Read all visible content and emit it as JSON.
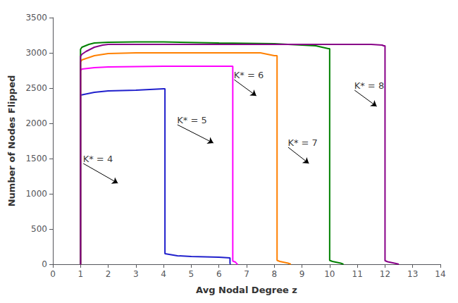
{
  "chart_data": {
    "type": "line",
    "xlabel": "Avg Nodal Degree z",
    "ylabel": "Number of Nodes Flipped",
    "xlim": [
      0,
      14
    ],
    "ylim": [
      0,
      3500
    ],
    "xticks": [
      0,
      1,
      2,
      3,
      4,
      5,
      6,
      7,
      8,
      9,
      10,
      11,
      12,
      13,
      14
    ],
    "yticks": [
      0,
      500,
      1000,
      1500,
      2000,
      2500,
      3000,
      3500
    ],
    "grid": false,
    "series": [
      {
        "color": "#2020CC",
        "x": [
          0.98,
          1.0,
          1.0,
          1.5,
          2.0,
          3.0,
          4.0,
          4.05,
          4.05,
          4.5,
          5.0,
          6.0,
          6.4,
          6.4,
          6.42
        ],
        "values": [
          0,
          0,
          2400,
          2440,
          2460,
          2470,
          2490,
          2490,
          150,
          120,
          110,
          100,
          90,
          10,
          0
        ]
      },
      {
        "color": "#FF00FF",
        "x": [
          0.98,
          1.0,
          1.0,
          1.05,
          1.5,
          2.0,
          3.0,
          4.0,
          5.0,
          6.0,
          6.5,
          6.5,
          6.6,
          6.65,
          6.68
        ],
        "values": [
          0,
          0,
          2750,
          2770,
          2790,
          2800,
          2805,
          2810,
          2810,
          2810,
          2810,
          45,
          30,
          5,
          0
        ]
      },
      {
        "color": "#FF8000",
        "x": [
          0.98,
          1.0,
          1.0,
          1.05,
          1.5,
          2.0,
          3.0,
          4.0,
          6.0,
          7.5,
          8.0,
          8.1,
          8.1,
          8.2,
          8.5,
          8.6
        ],
        "values": [
          0,
          0,
          2870,
          2900,
          2960,
          2990,
          3000,
          3000,
          3000,
          3000,
          2960,
          2960,
          55,
          40,
          15,
          0
        ]
      },
      {
        "color": "#008000",
        "x": [
          0.98,
          1.0,
          1.0,
          1.05,
          1.3,
          1.5,
          2.0,
          3.0,
          4.0,
          6.0,
          8.0,
          9.5,
          9.95,
          10.0,
          10.0,
          10.1,
          10.4,
          10.5
        ],
        "values": [
          0,
          0,
          3050,
          3080,
          3120,
          3140,
          3150,
          3155,
          3155,
          3140,
          3130,
          3100,
          3060,
          3060,
          55,
          40,
          15,
          0
        ]
      },
      {
        "color": "#880088",
        "x": [
          0.98,
          1.0,
          1.0,
          1.05,
          1.2,
          1.5,
          1.8,
          2.0,
          4.0,
          6.0,
          8.0,
          10.0,
          11.5,
          11.9,
          11.95,
          12.0,
          12.0,
          12.1,
          12.4,
          12.5
        ],
        "values": [
          0,
          0,
          2950,
          2980,
          3020,
          3080,
          3110,
          3120,
          3120,
          3120,
          3120,
          3120,
          3120,
          3110,
          3100,
          3100,
          50,
          35,
          10,
          0
        ]
      }
    ],
    "annotations": [
      {
        "text": "K* = 4",
        "xy": [
          2.35,
          1150
        ],
        "xytext": [
          1.1,
          1430
        ]
      },
      {
        "text": "K* = 5",
        "xy": [
          5.8,
          1720
        ],
        "xytext": [
          4.5,
          1980
        ]
      },
      {
        "text": "K* = 6",
        "xy": [
          7.35,
          2390
        ],
        "xytext": [
          6.55,
          2620
        ]
      },
      {
        "text": "K* = 7",
        "xy": [
          9.25,
          1430
        ],
        "xytext": [
          8.5,
          1660
        ]
      },
      {
        "text": "K* = 8",
        "xy": [
          11.7,
          2240
        ],
        "xytext": [
          10.9,
          2470
        ]
      }
    ]
  }
}
